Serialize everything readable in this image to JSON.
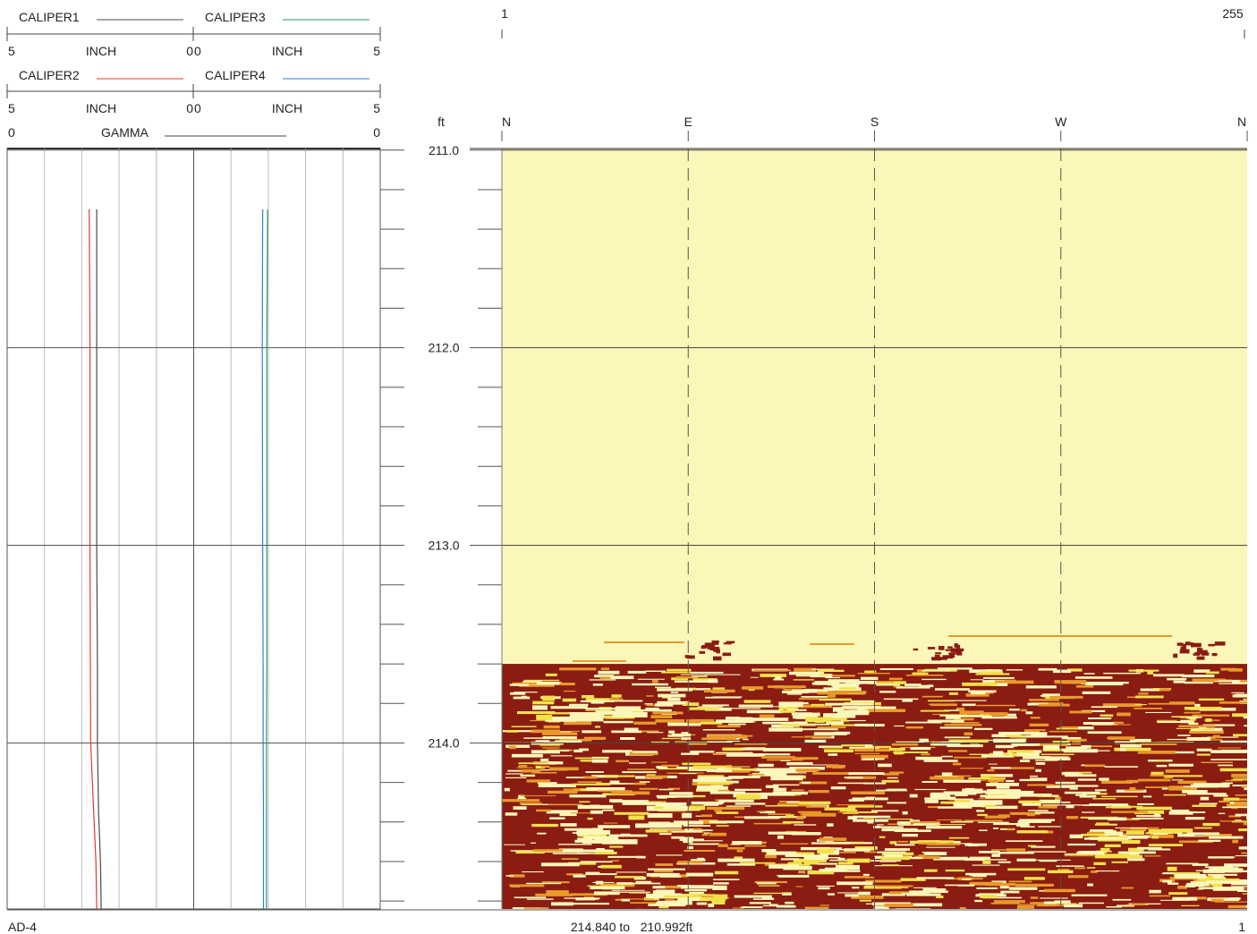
{
  "header": {
    "legend_rows": [
      {
        "left": {
          "name": "CALIPER1",
          "color": "#4a4a4a",
          "scale_min": "5",
          "unit": "INCH",
          "scale_max": "0"
        },
        "right": {
          "name": "CALIPER3",
          "color": "#2e9a6a",
          "scale_min": "0",
          "unit": "INCH",
          "scale_max": "5"
        }
      },
      {
        "left": {
          "name": "CALIPER2",
          "color": "#e03a2a",
          "scale_min": "5",
          "unit": "INCH",
          "scale_max": "0"
        },
        "right": {
          "name": "CALIPER4",
          "color": "#3a7ad0",
          "scale_min": "0",
          "unit": "INCH",
          "scale_max": "5"
        }
      }
    ],
    "gamma": {
      "name": "GAMMA",
      "color": "#4a4a4a",
      "scale_min": "0",
      "scale_max": "0"
    }
  },
  "image_track": {
    "scale_start": "1",
    "scale_end": "255",
    "depth_unit": "ft",
    "azimuths": [
      "N",
      "E",
      "S",
      "W",
      "N"
    ],
    "colors": {
      "light": "#fbf7b8",
      "mid": "#e89a2a",
      "dark": "#8a1c12",
      "yellow": "#f2e24a"
    }
  },
  "footer": {
    "well": "AD-4",
    "range": "214.840 to   210.992ft",
    "page": "1"
  },
  "chart_data": {
    "type": "line",
    "depth_range": [
      210.992,
      214.84
    ],
    "depth_ticks": [
      "211.0",
      "212.0",
      "213.0",
      "214.0"
    ],
    "y_inverted": true,
    "caliper_scale": [
      5,
      0,
      5
    ],
    "series": [
      {
        "name": "CALIPER1",
        "depth": [
          211.3,
          212.0,
          213.0,
          213.6,
          214.0,
          214.35,
          214.6,
          214.84
        ],
        "values": [
          2.6,
          2.6,
          2.6,
          2.58,
          2.58,
          2.55,
          2.5,
          2.48
        ]
      },
      {
        "name": "CALIPER2",
        "depth": [
          211.3,
          212.0,
          213.0,
          213.6,
          214.0,
          214.35,
          214.6,
          214.84
        ],
        "values": [
          2.8,
          2.78,
          2.78,
          2.77,
          2.76,
          2.68,
          2.62,
          2.6
        ]
      },
      {
        "name": "CALIPER3",
        "depth": [
          211.3,
          212.0,
          213.0,
          213.6,
          214.0,
          214.35,
          214.6,
          214.84
        ],
        "values": [
          1.98,
          1.96,
          1.96,
          1.96,
          1.95,
          1.95,
          1.95,
          1.95
        ]
      },
      {
        "name": "CALIPER4",
        "depth": [
          211.3,
          212.0,
          213.0,
          213.6,
          214.0,
          214.35,
          214.6,
          214.84
        ],
        "values": [
          1.85,
          1.84,
          1.85,
          1.86,
          1.86,
          1.87,
          1.87,
          1.87
        ]
      }
    ],
    "image_log": {
      "description_depth_top_light": [
        210.992,
        213.6
      ],
      "dark_interval": [
        213.6,
        214.84
      ]
    },
    "grid": true
  }
}
